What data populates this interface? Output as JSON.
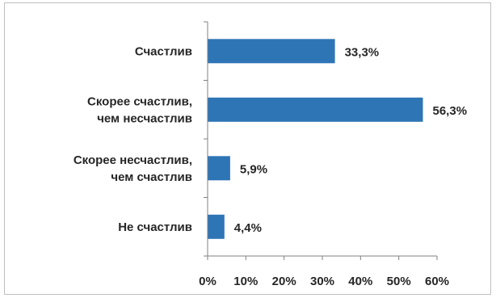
{
  "chart_data": {
    "type": "bar",
    "orientation": "horizontal",
    "categories": [
      [
        "Счастлив"
      ],
      [
        "Скорее счастлив,",
        "чем несчастлив"
      ],
      [
        "Скорее несчастлив,",
        "чем счастлив"
      ],
      [
        "Не счастлив"
      ]
    ],
    "values": [
      33.3,
      56.3,
      5.9,
      4.4
    ],
    "value_labels": [
      "33,3%",
      "56,3%",
      "5,9%",
      "4,4%"
    ],
    "xlim": [
      0,
      60
    ],
    "x_ticks": [
      0,
      10,
      20,
      30,
      40,
      50,
      60
    ],
    "x_tick_labels": [
      "0%",
      "10%",
      "20%",
      "30%",
      "40%",
      "50%",
      "60%"
    ],
    "title": "",
    "xlabel": "",
    "ylabel": "",
    "grid": false,
    "legend": "none",
    "bar_color": "#2e75b6",
    "axis_color": "#808080",
    "text_color": "#262626"
  }
}
